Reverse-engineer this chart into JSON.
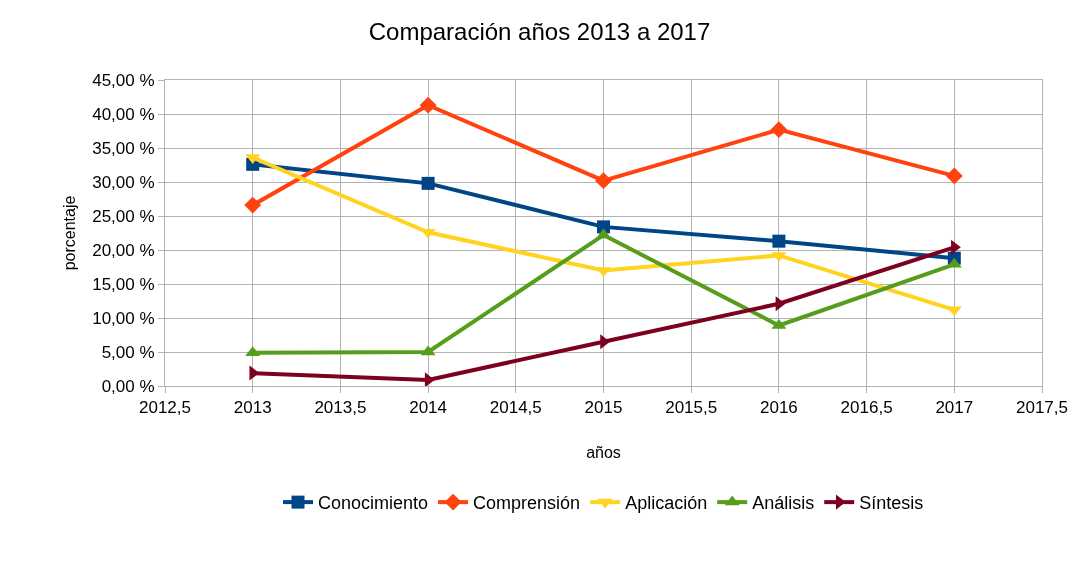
{
  "chart_data": {
    "type": "line",
    "title": "Comparación años 2013 a 2017",
    "xlabel": "años",
    "ylabel": "porcentaje",
    "x": [
      2013,
      2014,
      2015,
      2016,
      2017
    ],
    "series": [
      {
        "name": "Conocimiento",
        "color": "#004586",
        "marker": "square",
        "values": [
          32.6,
          29.8,
          23.4,
          21.3,
          18.8
        ]
      },
      {
        "name": "Comprensión",
        "color": "#ff420e",
        "marker": "diamond",
        "values": [
          26.6,
          41.3,
          30.2,
          37.7,
          30.9
        ]
      },
      {
        "name": "Aplicación",
        "color": "#ffd320",
        "marker": "triangle-down",
        "values": [
          33.6,
          22.6,
          17.0,
          19.2,
          11.2
        ]
      },
      {
        "name": "Análisis",
        "color": "#579d1c",
        "marker": "triangle",
        "values": [
          4.9,
          5.0,
          22.2,
          8.9,
          17.9
        ]
      },
      {
        "name": "Síntesis",
        "color": "#7e0021",
        "marker": "triangle-right",
        "values": [
          1.9,
          0.9,
          6.5,
          12.1,
          20.4
        ]
      }
    ],
    "xlim": [
      2012.5,
      2017.5
    ],
    "xticks": [
      {
        "value": 2012.5,
        "label": "2012,5"
      },
      2013,
      {
        "value": 2013.5,
        "label": "2013,5"
      },
      2014,
      {
        "value": 2014.5,
        "label": "2014,5"
      },
      2015,
      {
        "value": 2015.5,
        "label": "2015,5"
      },
      2016,
      {
        "value": 2016.5,
        "label": "2016,5"
      },
      2017,
      {
        "value": 2017.5,
        "label": "2017,5"
      }
    ],
    "ylim": [
      0,
      45
    ],
    "yticks": [
      {
        "value": 0,
        "label": "0,00 %"
      },
      {
        "value": 5,
        "label": "5,00 %"
      },
      {
        "value": 10,
        "label": "10,00 %"
      },
      {
        "value": 15,
        "label": "15,00 %"
      },
      {
        "value": 20,
        "label": "20,00 %"
      },
      {
        "value": 25,
        "label": "25,00 %"
      },
      {
        "value": 30,
        "label": "30,00 %"
      },
      {
        "value": 35,
        "label": "35,00 %"
      },
      {
        "value": 40,
        "label": "40,00 %"
      },
      {
        "value": 45,
        "label": "45,00 %"
      }
    ],
    "grid": true,
    "legend": "bottom",
    "line_style": "solid"
  }
}
